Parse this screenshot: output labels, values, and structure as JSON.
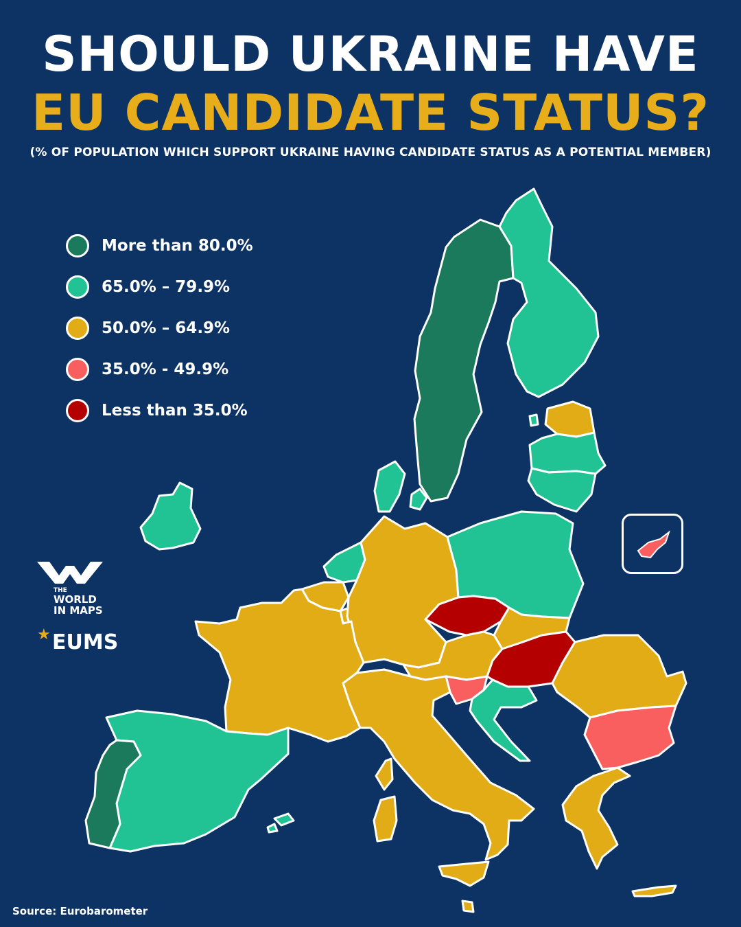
{
  "title": {
    "line1": "SHOULD UKRAINE HAVE",
    "line2": "EU CANDIDATE STATUS?",
    "subtitle": "(% OF POPULATION WHICH SUPPORT UKRAINE HAVING CANDIDATE STATUS AS A POTENTIAL MEMBER)"
  },
  "legend": [
    {
      "label": "More than 80.0%",
      "color": "#1a7a5b"
    },
    {
      "label": "65.0% – 79.9%",
      "color": "#21c394"
    },
    {
      "label": "50.0% – 64.9%",
      "color": "#e2ac16"
    },
    {
      "label": "35.0% - 49.9%",
      "color": "#fa5f60"
    },
    {
      "label": "Less than 35.0%",
      "color": "#b40001"
    }
  ],
  "branding": {
    "wm_small": "THE",
    "wm_line1": "WORLD",
    "wm_line2": "IN MAPS",
    "eums": "EUMS"
  },
  "source": "Source: Eurobarometer",
  "colors": {
    "background": "#0d3264",
    "border": "#ffffff"
  }
}
